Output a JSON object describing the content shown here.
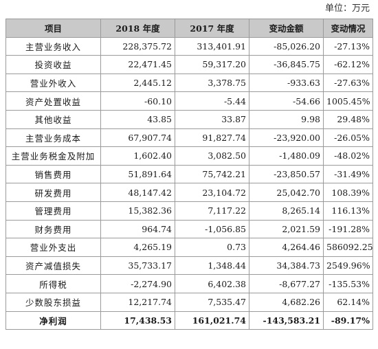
{
  "unit_label": "单位：万元",
  "header": [
    "项目",
    "2018 年度",
    "2017 年度",
    "变动金额",
    "变动情况"
  ],
  "rows": [
    {
      "item": "主营业务收入",
      "y2018": "228,375.72",
      "y2017": "313,401.91",
      "change": "-85,026.20",
      "pct": "-27.13%"
    },
    {
      "item": "投资收益",
      "y2018": "22,471.45",
      "y2017": "59,317.20",
      "change": "-36,845.75",
      "pct": "-62.12%"
    },
    {
      "item": "营业外收入",
      "y2018": "2,445.12",
      "y2017": "3,378.75",
      "change": "-933.63",
      "pct": "-27.63%"
    },
    {
      "item": "资产处置收益",
      "y2018": "-60.10",
      "y2017": "-5.44",
      "change": "-54.66",
      "pct": "1005.45%"
    },
    {
      "item": "其他收益",
      "y2018": "43.85",
      "y2017": "33.87",
      "change": "9.98",
      "pct": "29.48%"
    },
    {
      "item": "主营业务成本",
      "y2018": "67,907.74",
      "y2017": "91,827.74",
      "change": "-23,920.00",
      "pct": "-26.05%"
    },
    {
      "item": "主营业务税金及附加",
      "y2018": "1,602.40",
      "y2017": "3,082.50",
      "change": "-1,480.09",
      "pct": "-48.02%"
    },
    {
      "item": "销售费用",
      "y2018": "51,891.64",
      "y2017": "75,742.21",
      "change": "-23,850.57",
      "pct": "-31.49%"
    },
    {
      "item": "研发费用",
      "y2018": "48,147.42",
      "y2017": "23,104.72",
      "change": "25,042.70",
      "pct": "108.39%"
    },
    {
      "item": "管理费用",
      "y2018": "15,382.36",
      "y2017": "7,117.22",
      "change": "8,265.14",
      "pct": "116.13%"
    },
    {
      "item": "财务费用",
      "y2018": "964.74",
      "y2017": "-1,056.85",
      "change": "2,021.59",
      "pct": "-191.28%"
    },
    {
      "item": "营业外支出",
      "y2018": "4,265.19",
      "y2017": "0.73",
      "change": "4,264.46",
      "pct": "586092.25%"
    },
    {
      "item": "资产减值损失",
      "y2018": "35,733.17",
      "y2017": "1,348.44",
      "change": "34,384.73",
      "pct": "2549.96%"
    },
    {
      "item": "所得税",
      "y2018": "-2,274.90",
      "y2017": "6,402.38",
      "change": "-8,677.27",
      "pct": "-135.53%"
    },
    {
      "item": "少数股东损益",
      "y2018": "12,217.74",
      "y2017": "7,535.47",
      "change": "4,682.26",
      "pct": "62.14%"
    }
  ],
  "total": {
    "item": "净利润",
    "y2018": "17,438.53",
    "y2017": "161,021.74",
    "change": "-143,583.21",
    "pct": "-89.17%"
  }
}
